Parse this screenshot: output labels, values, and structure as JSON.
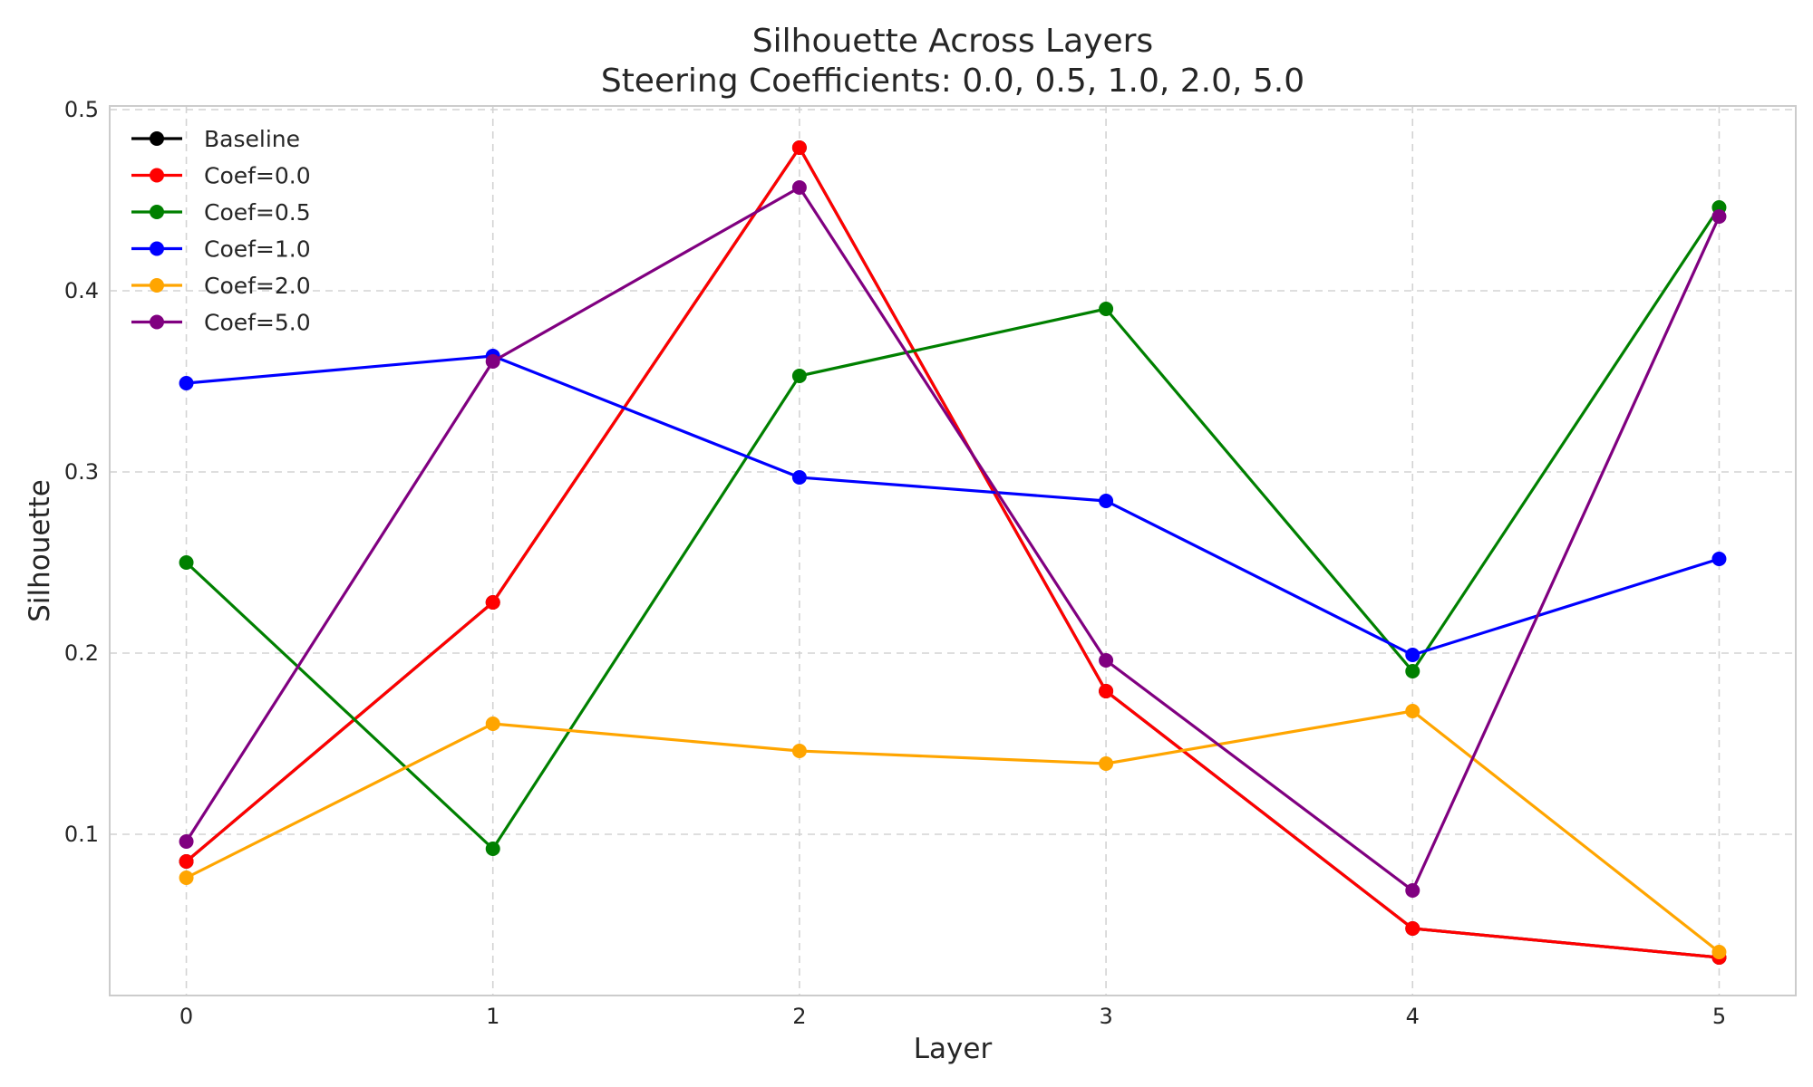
{
  "chart_data": {
    "type": "line",
    "title": "Silhouette Across Layers",
    "subtitle": "Steering Coefficients: 0.0, 0.5, 1.0, 2.0, 5.0",
    "xlabel": "Layer",
    "ylabel": "Silhouette",
    "x": [
      0,
      1,
      2,
      3,
      4,
      5
    ],
    "xlim": [
      -0.25,
      5.25
    ],
    "ylim": [
      0.011,
      0.502
    ],
    "yticks": [
      0.1,
      0.2,
      0.3,
      0.4,
      0.5
    ],
    "yticklabels": [
      "0.1",
      "0.2",
      "0.3",
      "0.4",
      "0.5"
    ],
    "xticklabels": [
      "0",
      "1",
      "2",
      "3",
      "4",
      "5"
    ],
    "grid": true,
    "legend_position": "top-left",
    "series": [
      {
        "name": "Baseline",
        "color": "#000000",
        "values": [
          0.085,
          0.228,
          0.479,
          0.179,
          0.048,
          0.032
        ]
      },
      {
        "name": "Coef=0.0",
        "color": "#ff0000",
        "values": [
          0.085,
          0.228,
          0.479,
          0.179,
          0.048,
          0.032
        ]
      },
      {
        "name": "Coef=0.5",
        "color": "#008000",
        "values": [
          0.25,
          0.092,
          0.353,
          0.39,
          0.19,
          0.446
        ]
      },
      {
        "name": "Coef=1.0",
        "color": "#0000ff",
        "values": [
          0.349,
          0.364,
          0.297,
          0.284,
          0.199,
          0.252
        ]
      },
      {
        "name": "Coef=2.0",
        "color": "#ffa500",
        "values": [
          0.076,
          0.161,
          0.146,
          0.139,
          0.168,
          0.035
        ]
      },
      {
        "name": "Coef=5.0",
        "color": "#800080",
        "values": [
          0.096,
          0.361,
          0.457,
          0.196,
          0.069,
          0.441
        ]
      }
    ]
  }
}
